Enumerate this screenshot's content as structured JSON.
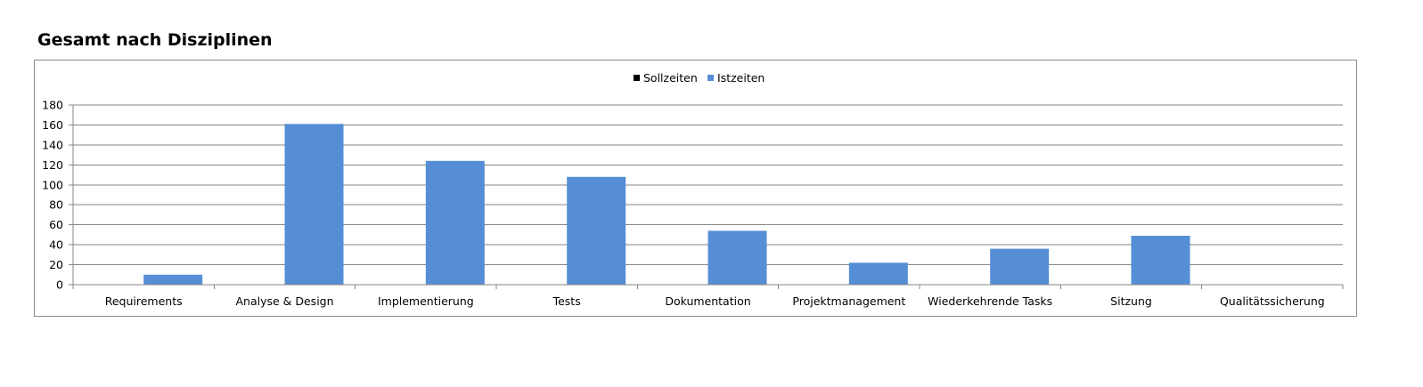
{
  "page": {
    "title": "Gesamt nach Disziplinen"
  },
  "chart_data": {
    "type": "bar",
    "categories": [
      "Requirements",
      "Analyse & Design",
      "Implementierung",
      "Tests",
      "Dokumentation",
      "Projektmanagement",
      "Wiederkehrende Tasks",
      "Sitzung",
      "Qualitätssicherung"
    ],
    "series": [
      {
        "name": "Sollzeiten",
        "color": "#000000",
        "values": [
          0,
          0,
          0,
          0,
          0,
          0,
          0,
          0,
          0
        ]
      },
      {
        "name": "Istzeiten",
        "color": "#558ed5",
        "values": [
          10,
          161,
          124,
          108,
          54,
          22,
          36,
          49,
          0
        ]
      }
    ],
    "title": "",
    "xlabel": "",
    "ylabel": "",
    "ylim": [
      0,
      180
    ],
    "yticks": [
      0,
      20,
      40,
      60,
      80,
      100,
      120,
      140,
      160,
      180
    ],
    "grid": true,
    "legend_position": "top-center"
  }
}
